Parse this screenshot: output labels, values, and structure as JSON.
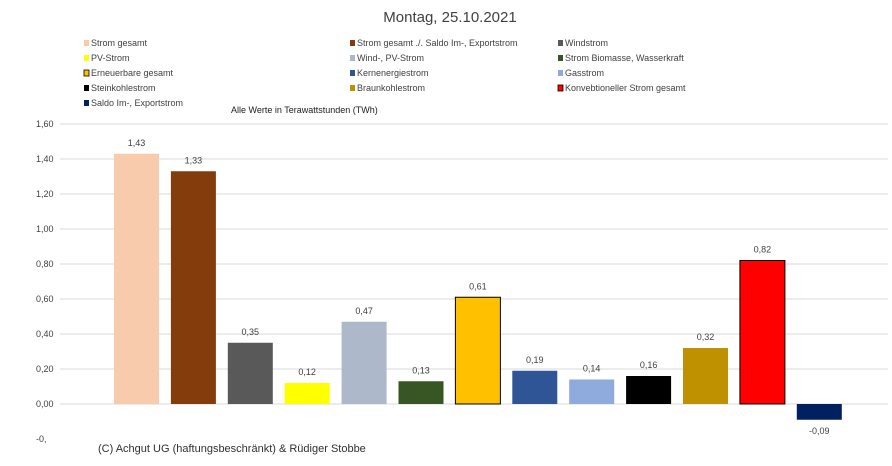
{
  "chart_data": {
    "type": "bar",
    "title": "Montag, 25.10.2021",
    "subtitle": "Alle Werte in Terawattstunden (TWh)",
    "credit": "(C) Achgut UG (haftungsbeschränkt) & Rüdiger Stobbe",
    "ylim": [
      -0.2,
      1.6
    ],
    "yticks": [
      "1,60",
      "1,40",
      "1,20",
      "1,00",
      "0,80",
      "0,60",
      "0,40",
      "0,20",
      "0,00",
      "-0,"
    ],
    "grid": true,
    "legend_position": "top",
    "series": [
      {
        "name": "Strom gesamt",
        "value": 1.43,
        "label": "1,43",
        "color": "#f8cbad",
        "stroke": "none"
      },
      {
        "name": "Strom gesamt ./. Saldo Im-, Exportstrom",
        "value": 1.33,
        "label": "1,33",
        "color": "#843c0c",
        "stroke": "none"
      },
      {
        "name": "Windstrom",
        "value": 0.35,
        "label": "0,35",
        "color": "#595959",
        "stroke": "none"
      },
      {
        "name": "PV-Strom",
        "value": 0.12,
        "label": "0,12",
        "color": "#ffff00",
        "stroke": "none"
      },
      {
        "name": "Wind-, PV-Strom",
        "value": 0.47,
        "label": "0,47",
        "color": "#adb9ca",
        "stroke": "none"
      },
      {
        "name": "Strom Biomasse, Wasserkraft",
        "value": 0.13,
        "label": "0,13",
        "color": "#375623",
        "stroke": "none"
      },
      {
        "name": "Erneuerbare gesamt",
        "value": 0.61,
        "label": "0,61",
        "color": "#ffc000",
        "stroke": "#000000"
      },
      {
        "name": "Kernenergiestrom",
        "value": 0.19,
        "label": "0,19",
        "color": "#2f5597",
        "stroke": "none"
      },
      {
        "name": "Gasstrom",
        "value": 0.14,
        "label": "0,14",
        "color": "#8faadc",
        "stroke": "none"
      },
      {
        "name": "Steinkohlestrom",
        "value": 0.16,
        "label": "0,16",
        "color": "#000000",
        "stroke": "none"
      },
      {
        "name": "Braunkohlestrom",
        "value": 0.32,
        "label": "0,32",
        "color": "#bf9000",
        "stroke": "none"
      },
      {
        "name": "Konvebtioneller Strom gesamt",
        "value": 0.82,
        "label": "0,82",
        "color": "#ff0000",
        "stroke": "#000000"
      },
      {
        "name": "Saldo Im-, Exportstrom",
        "value": -0.09,
        "label": "-0,09",
        "color": "#002060",
        "stroke": "none"
      }
    ]
  }
}
